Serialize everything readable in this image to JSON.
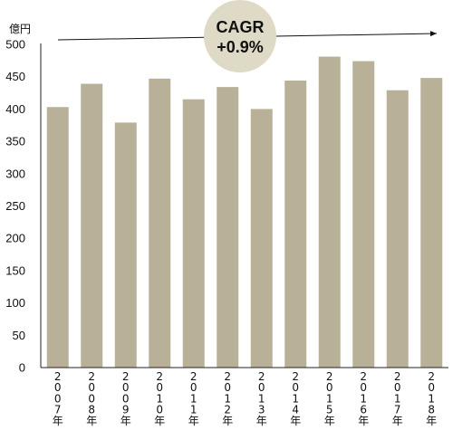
{
  "colors": {
    "bar": "#b8b198",
    "badge": "#dedac6",
    "axis": "#222222",
    "text": "#111111"
  },
  "chart_data": {
    "type": "bar",
    "unit_label": "億円",
    "categories": [
      "2007年",
      "2008年",
      "2009年",
      "2010年",
      "2011年",
      "2012年",
      "2013年",
      "2014年",
      "2015年",
      "2016年",
      "2017年",
      "2018年"
    ],
    "values": [
      403,
      439,
      379,
      447,
      415,
      434,
      400,
      444,
      481,
      474,
      429,
      448
    ],
    "ylim": [
      0,
      500
    ],
    "yticks": [
      "0",
      "50",
      "100",
      "150",
      "200",
      "250",
      "300",
      "350",
      "400",
      "450",
      "500"
    ],
    "grid": false,
    "legend": "none",
    "annotation": {
      "line1": "CAGR",
      "line2": "+0.9%"
    }
  }
}
